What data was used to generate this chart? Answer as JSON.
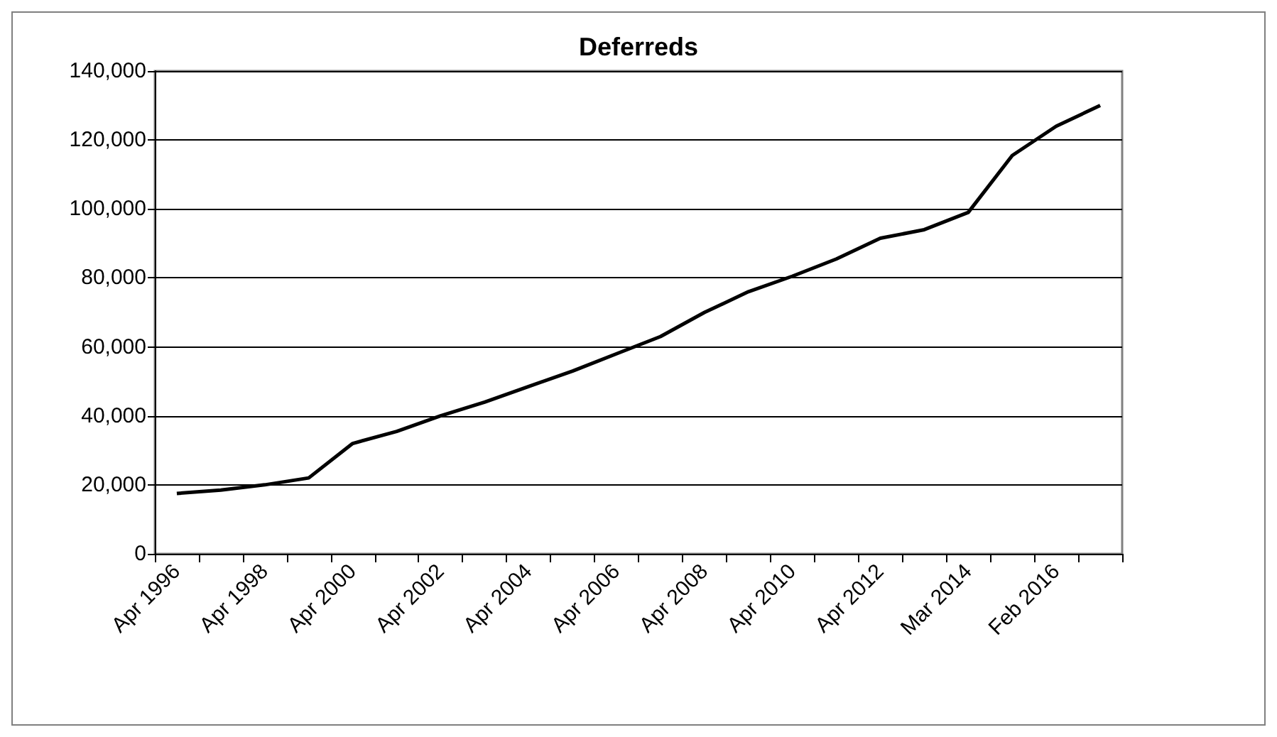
{
  "chart_data": {
    "type": "line",
    "title": "Deferreds",
    "categories": [
      "Apr 1996",
      null,
      "Apr 1998",
      null,
      "Apr 2000",
      null,
      "Apr 2002",
      null,
      "Apr 2004",
      null,
      "Apr 2006",
      null,
      "Apr 2008",
      null,
      "Apr 2010",
      null,
      "Apr 2012",
      null,
      "Mar 2014",
      null,
      "Feb 2016",
      null
    ],
    "series": [
      {
        "color": "#000000",
        "values": [
          17500,
          18500,
          20000,
          22000,
          32000,
          35500,
          40000,
          44000,
          48500,
          53000,
          58000,
          63000,
          70000,
          76000,
          80500,
          85500,
          91500,
          94000,
          99000,
          115500,
          124000,
          130000
        ]
      }
    ],
    "ylim": [
      0,
      140000
    ],
    "yticks": [
      {
        "value": 0,
        "label": "0"
      },
      {
        "value": 20000,
        "label": "20,000"
      },
      {
        "value": 40000,
        "label": "40,000"
      },
      {
        "value": 60000,
        "label": "60,000"
      },
      {
        "value": 80000,
        "label": "80,000"
      },
      {
        "value": 100000,
        "label": "100,000"
      },
      {
        "value": 120000,
        "label": "120,000"
      },
      {
        "value": 140000,
        "label": "140,000"
      }
    ],
    "grid": "y",
    "marker": "none"
  }
}
